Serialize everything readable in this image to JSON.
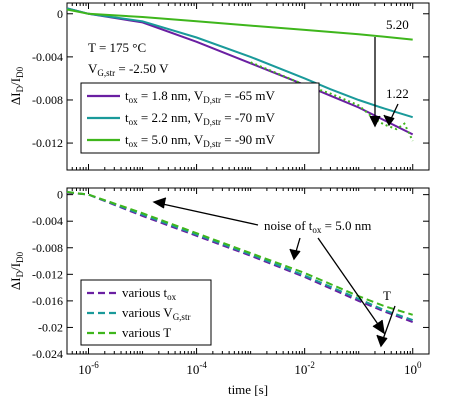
{
  "chart_data": [
    {
      "type": "line",
      "x_scale": "log",
      "xlim": [
        4e-07,
        2
      ],
      "ylim": [
        -0.0145,
        0.001
      ],
      "yticks": [
        0,
        -0.004,
        -0.008,
        -0.012
      ],
      "ytick_labels": [
        "0",
        "-0.004",
        "-0.008",
        "-0.012"
      ],
      "ylabel": {
        "main": "ΔI",
        "sub1": "D",
        "mid": "/I",
        "sub2": "D0"
      },
      "conditions": {
        "temperature": "T = 175 °C",
        "vg_main": "V",
        "vg_sub": "G,str",
        "vg_value": " = -2.50 V"
      },
      "series": [
        {
          "name": "t_ox = 1.8 nm, V_D,str = -65 mV",
          "color": "#6a1fa2",
          "legend": {
            "a": "t",
            "b": "ox",
            "c": " = 1.8 nm, V",
            "d": "D,str",
            "e": " = -65 mV"
          },
          "x": [
            4e-07,
            1e-06,
            1e-05,
            0.0001,
            0.001,
            0.01,
            0.03,
            0.1,
            0.3,
            1
          ],
          "y": [
            0.0005,
            0.0,
            -0.0008,
            -0.0026,
            -0.0046,
            -0.0066,
            -0.0076,
            -0.0087,
            -0.0099,
            -0.0112
          ]
        },
        {
          "name": "t_ox = 2.2 nm, V_D,str = -70 mV",
          "color": "#1a9a9a",
          "legend": {
            "a": "t",
            "b": "ox",
            "c": " = 2.2 nm, V",
            "d": "D,str",
            "e": " = -70 mV"
          },
          "x": [
            4e-07,
            1e-06,
            1e-05,
            0.0001,
            0.001,
            0.01,
            0.03,
            0.1,
            0.3,
            1
          ],
          "y": [
            0.0005,
            0.0,
            -0.0007,
            -0.0022,
            -0.004,
            -0.006,
            -0.007,
            -0.008,
            -0.0088,
            -0.0096
          ]
        },
        {
          "name": "t_ox = 5.0 nm, V_D,str = -90 mV",
          "color": "#3fb61c",
          "legend": {
            "a": "t",
            "b": "ox",
            "c": " = 5.0 nm, V",
            "d": "D,str",
            "e": " = -90 mV"
          },
          "x": [
            4e-07,
            1e-06,
            1e-05,
            0.0001,
            0.001,
            0.01,
            0.1,
            1
          ],
          "y": [
            0.0004,
            0.0,
            -0.0003,
            -0.0007,
            -0.0011,
            -0.0015,
            -0.0019,
            -0.0024
          ]
        }
      ],
      "dotted_series": {
        "color": "#3fb61c",
        "x": [
          0.001,
          0.003,
          0.01,
          0.03,
          0.1,
          0.2,
          0.3,
          0.5,
          0.7,
          1
        ],
        "y": [
          -0.0045,
          -0.0055,
          -0.0066,
          -0.0074,
          -0.0085,
          -0.0098,
          -0.0103,
          -0.0107,
          -0.0102,
          -0.0118
        ]
      },
      "annotations": [
        {
          "text": "5.20",
          "x": 0.55,
          "y": -0.0018
        },
        {
          "text": "1.22",
          "x": 0.55,
          "y": -0.0078
        }
      ]
    },
    {
      "type": "line",
      "x_scale": "log",
      "xlim": [
        4e-07,
        2
      ],
      "xticks": [
        1e-06,
        0.0001,
        0.01,
        1
      ],
      "xtick_labels": [
        {
          "base": "10",
          "exp": "-6"
        },
        {
          "base": "10",
          "exp": "-4"
        },
        {
          "base": "10",
          "exp": "-2"
        },
        {
          "base": "10",
          "exp": "0"
        }
      ],
      "xlabel": "time [s]",
      "ylim": [
        -0.024,
        0.001
      ],
      "yticks": [
        0,
        -0.004,
        -0.008,
        -0.012,
        -0.016,
        -0.02,
        -0.024
      ],
      "ytick_labels": [
        "0",
        "-0.004",
        "-0.008",
        "-0.012",
        "-0.016",
        "-0.02",
        "-0.024"
      ],
      "ylabel": {
        "main": "ΔI",
        "sub1": "D",
        "mid": "/I",
        "sub2": "D0"
      },
      "series": [
        {
          "name": "various t_ox",
          "color": "#6a1fa2",
          "dash": "7,4",
          "legend": {
            "a": "various t",
            "b": "ox"
          },
          "x": [
            4e-07,
            1e-06,
            1e-05,
            0.0001,
            0.001,
            0.01,
            0.1,
            0.3,
            1
          ],
          "y": [
            0.0003,
            0.0,
            -0.0032,
            -0.0062,
            -0.0092,
            -0.0124,
            -0.016,
            -0.0176,
            -0.0192
          ]
        },
        {
          "name": "various V_G,str",
          "color": "#1a9a9a",
          "dash": "7,4",
          "legend": {
            "a": "various V",
            "b": "G,str"
          },
          "x": [
            4e-07,
            1e-06,
            1e-05,
            0.0001,
            0.001,
            0.01,
            0.1,
            0.3,
            1
          ],
          "y": [
            0.0004,
            0.0,
            -0.003,
            -0.006,
            -0.009,
            -0.0122,
            -0.0157,
            -0.0174,
            -0.0189
          ]
        },
        {
          "name": "various T",
          "color": "#3fb61c",
          "dash": "7,4",
          "legend": {
            "a": "various T",
            "b": ""
          },
          "x": [
            4e-07,
            1e-06,
            1e-05,
            0.0001,
            0.001,
            0.01,
            0.1,
            0.3,
            1
          ],
          "y": [
            0.0004,
            0.0,
            -0.0028,
            -0.0058,
            -0.0088,
            -0.0118,
            -0.0153,
            -0.0168,
            -0.0181
          ]
        }
      ],
      "annotations": [
        {
          "text_main": "noise of t",
          "text_sub": "ox",
          "text_end": " = 5.0 nm"
        },
        {
          "text": "T"
        }
      ]
    }
  ]
}
